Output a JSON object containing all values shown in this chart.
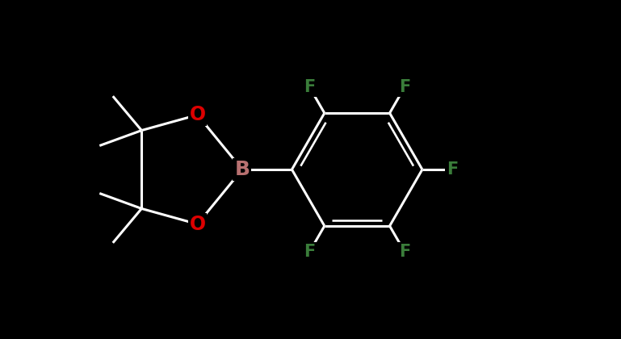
{
  "bg_color": "#000000",
  "bond_color": "#ffffff",
  "bond_width": 2.2,
  "atom_colors": {
    "B": "#b87070",
    "O": "#dd0000",
    "F": "#3a7d3a",
    "C": "#ffffff"
  },
  "fig_width": 7.69,
  "fig_height": 4.2,
  "dpi": 100,
  "xlim": [
    0.0,
    10.0
  ],
  "ylim": [
    0.0,
    5.46
  ]
}
